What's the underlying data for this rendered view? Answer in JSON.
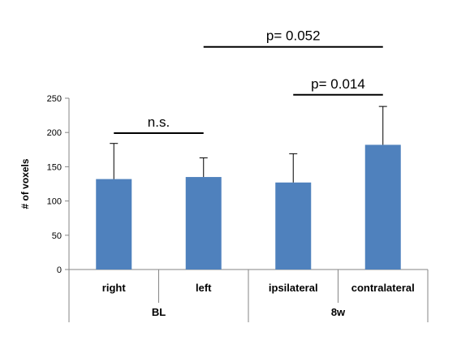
{
  "chart_data": {
    "type": "bar",
    "ylabel": "# of voxels",
    "ylim": [
      0,
      250
    ],
    "yticks": [
      0,
      50,
      100,
      150,
      200,
      250
    ],
    "grid": false,
    "bar_color": "#4F81BD",
    "categories": [
      "right",
      "left",
      "ipsilateral",
      "contralateral"
    ],
    "groups": [
      {
        "label": "BL",
        "categories": [
          "right",
          "left"
        ]
      },
      {
        "label": "8w",
        "categories": [
          "ipsilateral",
          "contralateral"
        ]
      }
    ],
    "values": [
      132,
      135,
      127,
      182
    ],
    "error_upper": [
      184,
      163,
      169,
      238
    ],
    "annotations": [
      {
        "text": "n.s.",
        "from": "right",
        "to": "left",
        "y": 199
      },
      {
        "text": "p= 0.014",
        "from": "ipsilateral",
        "to": "contralateral",
        "y": 255
      },
      {
        "text": "p= 0.052",
        "from": "left",
        "to": "contralateral",
        "y": 325
      }
    ]
  }
}
